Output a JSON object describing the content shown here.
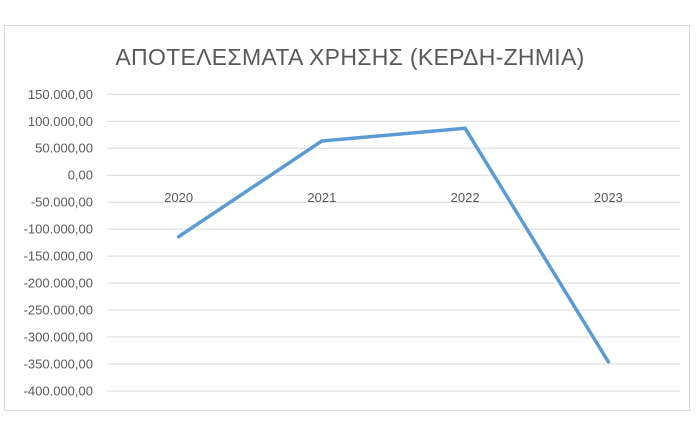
{
  "chart_data": {
    "type": "line",
    "title": "ΑΠΟΤΕΛΕΣΜΑΤΑ ΧΡΗΣΗΣ (ΚΕΡΔΗ-ΖΗΜΙΑ)",
    "categories": [
      "2020",
      "2021",
      "2022",
      "2023"
    ],
    "values": [
      -114000,
      63500,
      87000,
      -346000
    ],
    "ylim": [
      -400000,
      150000
    ],
    "ytick_step": 50000,
    "ytick_labels": [
      "150.000,00",
      "100.000,00",
      "50.000,00",
      "0,00",
      "-50.000,00",
      "-100.000,00",
      "-150.000,00",
      "-200.000,00",
      "-250.000,00",
      "-300.000,00",
      "-350.000,00",
      "-400.000,00"
    ],
    "xlabel": "",
    "ylabel": "",
    "grid": true,
    "legend": "none",
    "colors": {
      "line": "#5b9bd5",
      "grid": "#d9d9d9",
      "text": "#595959"
    }
  }
}
